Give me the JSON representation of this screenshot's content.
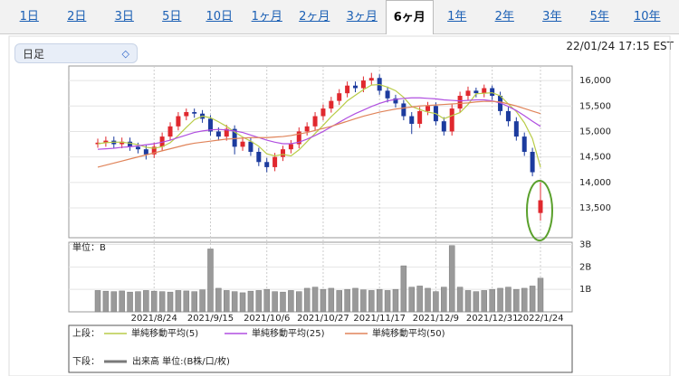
{
  "tabs": [
    "1日",
    "2日",
    "3日",
    "5日",
    "10日",
    "1ヶ月",
    "2ヶ月",
    "3ヶ月",
    "6ヶ月",
    "1年",
    "2年",
    "3年",
    "5年",
    "10年"
  ],
  "active_tab": "6ヶ月",
  "dropdown": "日足",
  "timestamp": "22/01/24 17:15 EST",
  "legend_labels": {
    "upper": "上段：",
    "lower": "下段："
  },
  "chart_data": [
    {
      "type": "candlestick",
      "categories": [
        null,
        null,
        null,
        null,
        null,
        null,
        null,
        "2021/8/24",
        null,
        null,
        null,
        null,
        null,
        null,
        "2021/9/15",
        null,
        null,
        null,
        null,
        null,
        null,
        "2021/10/6",
        null,
        null,
        null,
        null,
        null,
        null,
        "2021/10/27",
        null,
        null,
        null,
        null,
        null,
        null,
        "2021/11/17",
        null,
        null,
        null,
        null,
        null,
        null,
        "2021/12/9",
        null,
        null,
        null,
        null,
        null,
        null,
        "2021/12/31",
        null,
        null,
        null,
        null,
        null,
        "2022/1/24"
      ],
      "open": [
        14750,
        14780,
        14820,
        14750,
        14800,
        14700,
        14650,
        14550,
        14700,
        14900,
        15100,
        15300,
        15380,
        15350,
        15250,
        15000,
        14900,
        15050,
        14700,
        14800,
        14600,
        14400,
        14300,
        14500,
        14650,
        14750,
        15000,
        15100,
        15300,
        15450,
        15600,
        15750,
        15900,
        15850,
        16000,
        16050,
        15800,
        15650,
        15550,
        15300,
        15150,
        15400,
        15500,
        15200,
        15000,
        15450,
        15700,
        15800,
        15750,
        15850,
        15700,
        15400,
        15200,
        14900,
        14600,
        13400
      ],
      "high": [
        14860,
        14900,
        14900,
        14880,
        14880,
        14780,
        14730,
        14780,
        14980,
        15180,
        15380,
        15450,
        15450,
        15420,
        15320,
        15080,
        15130,
        15120,
        14880,
        14880,
        14680,
        14480,
        14580,
        14720,
        14830,
        15080,
        15180,
        15380,
        15530,
        15680,
        15830,
        15980,
        15980,
        16080,
        16150,
        16120,
        15880,
        15720,
        15620,
        15380,
        15480,
        15580,
        15570,
        15280,
        15530,
        15780,
        15880,
        15860,
        15920,
        15900,
        15780,
        15480,
        15280,
        14980,
        14680,
        14000
      ],
      "low": [
        14680,
        14700,
        14670,
        14670,
        14620,
        14570,
        14450,
        14480,
        14620,
        14820,
        15020,
        15220,
        15270,
        15170,
        14920,
        14820,
        14820,
        14550,
        14620,
        14520,
        14320,
        14200,
        14220,
        14420,
        14570,
        14670,
        14920,
        15020,
        15220,
        15370,
        15520,
        15670,
        15770,
        15770,
        15920,
        15720,
        15570,
        15470,
        15220,
        14950,
        15070,
        15320,
        15120,
        14920,
        14920,
        15370,
        15620,
        15670,
        15670,
        15620,
        15320,
        15100,
        14820,
        14520,
        14120,
        13250
      ],
      "close": [
        14780,
        14820,
        14750,
        14800,
        14700,
        14650,
        14550,
        14700,
        14900,
        15100,
        15300,
        15380,
        15350,
        15250,
        15000,
        14900,
        15050,
        14700,
        14800,
        14600,
        14400,
        14300,
        14500,
        14650,
        14750,
        15000,
        15100,
        15300,
        15450,
        15600,
        15750,
        15900,
        15850,
        16000,
        16050,
        15800,
        15650,
        15550,
        15300,
        15150,
        15400,
        15500,
        15200,
        15000,
        15450,
        15700,
        15800,
        15750,
        15850,
        15700,
        15400,
        15200,
        14900,
        14600,
        14200,
        13650
      ],
      "up_color": "#e0282e",
      "down_color": "#1c3b9e",
      "series": [
        {
          "name": "単純移動平均(5)",
          "color": "#b9cc48",
          "values": [
            14760,
            14780,
            14790,
            14790,
            14770,
            14740,
            14690,
            14670,
            14700,
            14780,
            14920,
            15080,
            15230,
            15300,
            15270,
            15190,
            15100,
            14990,
            14890,
            14810,
            14710,
            14560,
            14520,
            14550,
            14520,
            14640,
            14800,
            14960,
            15120,
            15290,
            15440,
            15600,
            15710,
            15820,
            15910,
            15920,
            15870,
            15800,
            15670,
            15490,
            15430,
            15380,
            15350,
            15250,
            15310,
            15370,
            15530,
            15740,
            15750,
            15760,
            15700,
            15540,
            15390,
            15170,
            14860,
            14300
          ]
        },
        {
          "name": "単純移動平均(25)",
          "color": "#b04fe0",
          "values": [
            14650,
            14660,
            14670,
            14690,
            14700,
            14720,
            14740,
            14760,
            14790,
            14830,
            14880,
            14930,
            14980,
            15010,
            15030,
            15040,
            15030,
            15010,
            14980,
            14930,
            14880,
            14830,
            14790,
            14760,
            14760,
            14790,
            14850,
            14920,
            15000,
            15090,
            15180,
            15270,
            15350,
            15420,
            15490,
            15550,
            15600,
            15630,
            15650,
            15660,
            15660,
            15650,
            15640,
            15620,
            15610,
            15600,
            15610,
            15620,
            15620,
            15600,
            15560,
            15490,
            15410,
            15310,
            15200,
            15100
          ]
        },
        {
          "name": "単純移動平均(50)",
          "color": "#e0845a",
          "values": [
            14300,
            14340,
            14380,
            14420,
            14460,
            14500,
            14540,
            14580,
            14620,
            14660,
            14700,
            14740,
            14770,
            14790,
            14810,
            14830,
            14850,
            14860,
            14870,
            14880,
            14880,
            14880,
            14890,
            14900,
            14920,
            14950,
            14980,
            15020,
            15060,
            15100,
            15150,
            15200,
            15250,
            15300,
            15340,
            15380,
            15410,
            15440,
            15460,
            15480,
            15500,
            15510,
            15520,
            15530,
            15540,
            15550,
            15560,
            15580,
            15590,
            15590,
            15580,
            15540,
            15500,
            15450,
            15400,
            15350
          ]
        }
      ],
      "ylim": [
        12915,
        16285
      ],
      "yticks": [
        {
          "value": 13500,
          "label": "13,500"
        },
        {
          "value": 14000,
          "label": "14,000"
        },
        {
          "value": 14500,
          "label": "14,500"
        },
        {
          "value": 15000,
          "label": "15,000"
        },
        {
          "value": 15500,
          "label": "15,500"
        },
        {
          "value": 16000,
          "label": "16,000"
        }
      ],
      "grid": true
    },
    {
      "type": "bar",
      "axis_label": "単位：B",
      "color": "#7a7a7a",
      "series": [
        {
          "name": "出来高 単位:(B株/口/枚)",
          "color": "#7a7a7a",
          "values": [
            0.95,
            0.92,
            0.9,
            0.93,
            0.88,
            0.9,
            0.95,
            0.92,
            0.9,
            0.88,
            0.95,
            0.93,
            0.9,
            0.98,
            2.8,
            1.05,
            0.95,
            0.9,
            0.85,
            0.92,
            0.95,
            1.0,
            0.9,
            0.88,
            0.95,
            0.9,
            1.05,
            1.1,
            1.0,
            1.05,
            0.95,
            1.0,
            1.05,
            0.98,
            0.95,
            1.0,
            0.95,
            1.0,
            2.05,
            1.1,
            1.15,
            1.05,
            0.9,
            1.1,
            2.95,
            1.1,
            0.95,
            0.9,
            0.95,
            1.0,
            1.05,
            1.1,
            1.0,
            1.05,
            1.15,
            1.5
          ]
        }
      ],
      "ylim": [
        0,
        3.1
      ],
      "yticks": [
        {
          "value": 1,
          "label": "1B"
        },
        {
          "value": 2,
          "label": "2B"
        },
        {
          "value": 3,
          "label": "3B"
        }
      ],
      "grid": true
    }
  ]
}
